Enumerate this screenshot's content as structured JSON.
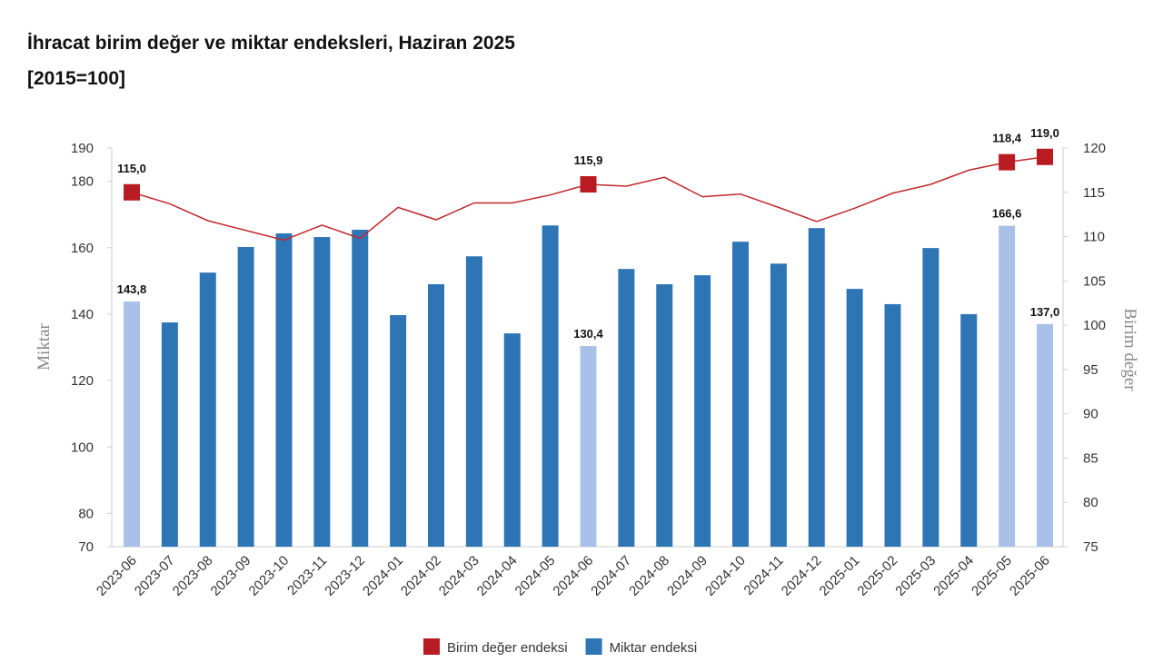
{
  "chart_data": {
    "type": "combo",
    "title": "İhracat birim değer ve miktar endeksleri, Haziran 2025",
    "subtitle": "[2015=100]",
    "y_label": "Miktar",
    "y2_label": "Birim değer",
    "categories": [
      "2023-06",
      "2023-07",
      "2023-08",
      "2023-09",
      "2023-10",
      "2023-11",
      "2023-12",
      "2024-01",
      "2024-02",
      "2024-03",
      "2024-04",
      "2024-05",
      "2024-06",
      "2024-07",
      "2024-08",
      "2024-09",
      "2024-10",
      "2024-11",
      "2024-12",
      "2025-01",
      "2025-02",
      "2025-03",
      "2025-04",
      "2025-05",
      "2025-06"
    ],
    "ylim": [
      70,
      190
    ],
    "yticks": [
      70,
      80,
      100,
      120,
      140,
      160,
      180,
      190
    ],
    "y2lim": [
      75,
      120
    ],
    "y2ticks": [
      75,
      80,
      85,
      90,
      95,
      100,
      105,
      110,
      115,
      120
    ],
    "legend": "bottom",
    "series": [
      {
        "name": "Birim değer endeksi",
        "type": "line",
        "axis": "y2",
        "color": "#c0282d",
        "marker_color": "#b81c22",
        "values": [
          115.0,
          113.7,
          111.8,
          110.7,
          109.6,
          111.3,
          109.8,
          113.3,
          111.9,
          113.8,
          113.8,
          114.7,
          115.9,
          115.7,
          116.7,
          114.5,
          114.8,
          113.3,
          111.7,
          113.2,
          114.9,
          115.9,
          117.5,
          118.4,
          119.0
        ],
        "value_labels": [
          "115,0",
          null,
          null,
          null,
          null,
          null,
          null,
          null,
          null,
          null,
          null,
          null,
          "115,9",
          null,
          null,
          null,
          null,
          null,
          null,
          null,
          null,
          null,
          null,
          "118,4",
          "119,0"
        ]
      },
      {
        "name": "Miktar endeksi",
        "type": "bar",
        "axis": "y",
        "color": "#2e75b6",
        "highlight_color": "#a9c1e8",
        "values": [
          143.8,
          137.5,
          152.5,
          160.2,
          164.3,
          163.2,
          165.4,
          139.7,
          149.0,
          157.4,
          134.2,
          166.7,
          130.4,
          153.6,
          149.0,
          151.7,
          161.8,
          155.2,
          165.9,
          147.6,
          143.0,
          159.9,
          140.0,
          166.6,
          137.0
        ],
        "value_labels": [
          "143,8",
          null,
          null,
          null,
          null,
          null,
          null,
          null,
          null,
          null,
          null,
          null,
          "130,4",
          null,
          null,
          null,
          null,
          null,
          null,
          null,
          null,
          null,
          null,
          "166,6",
          "137,0"
        ]
      }
    ]
  }
}
